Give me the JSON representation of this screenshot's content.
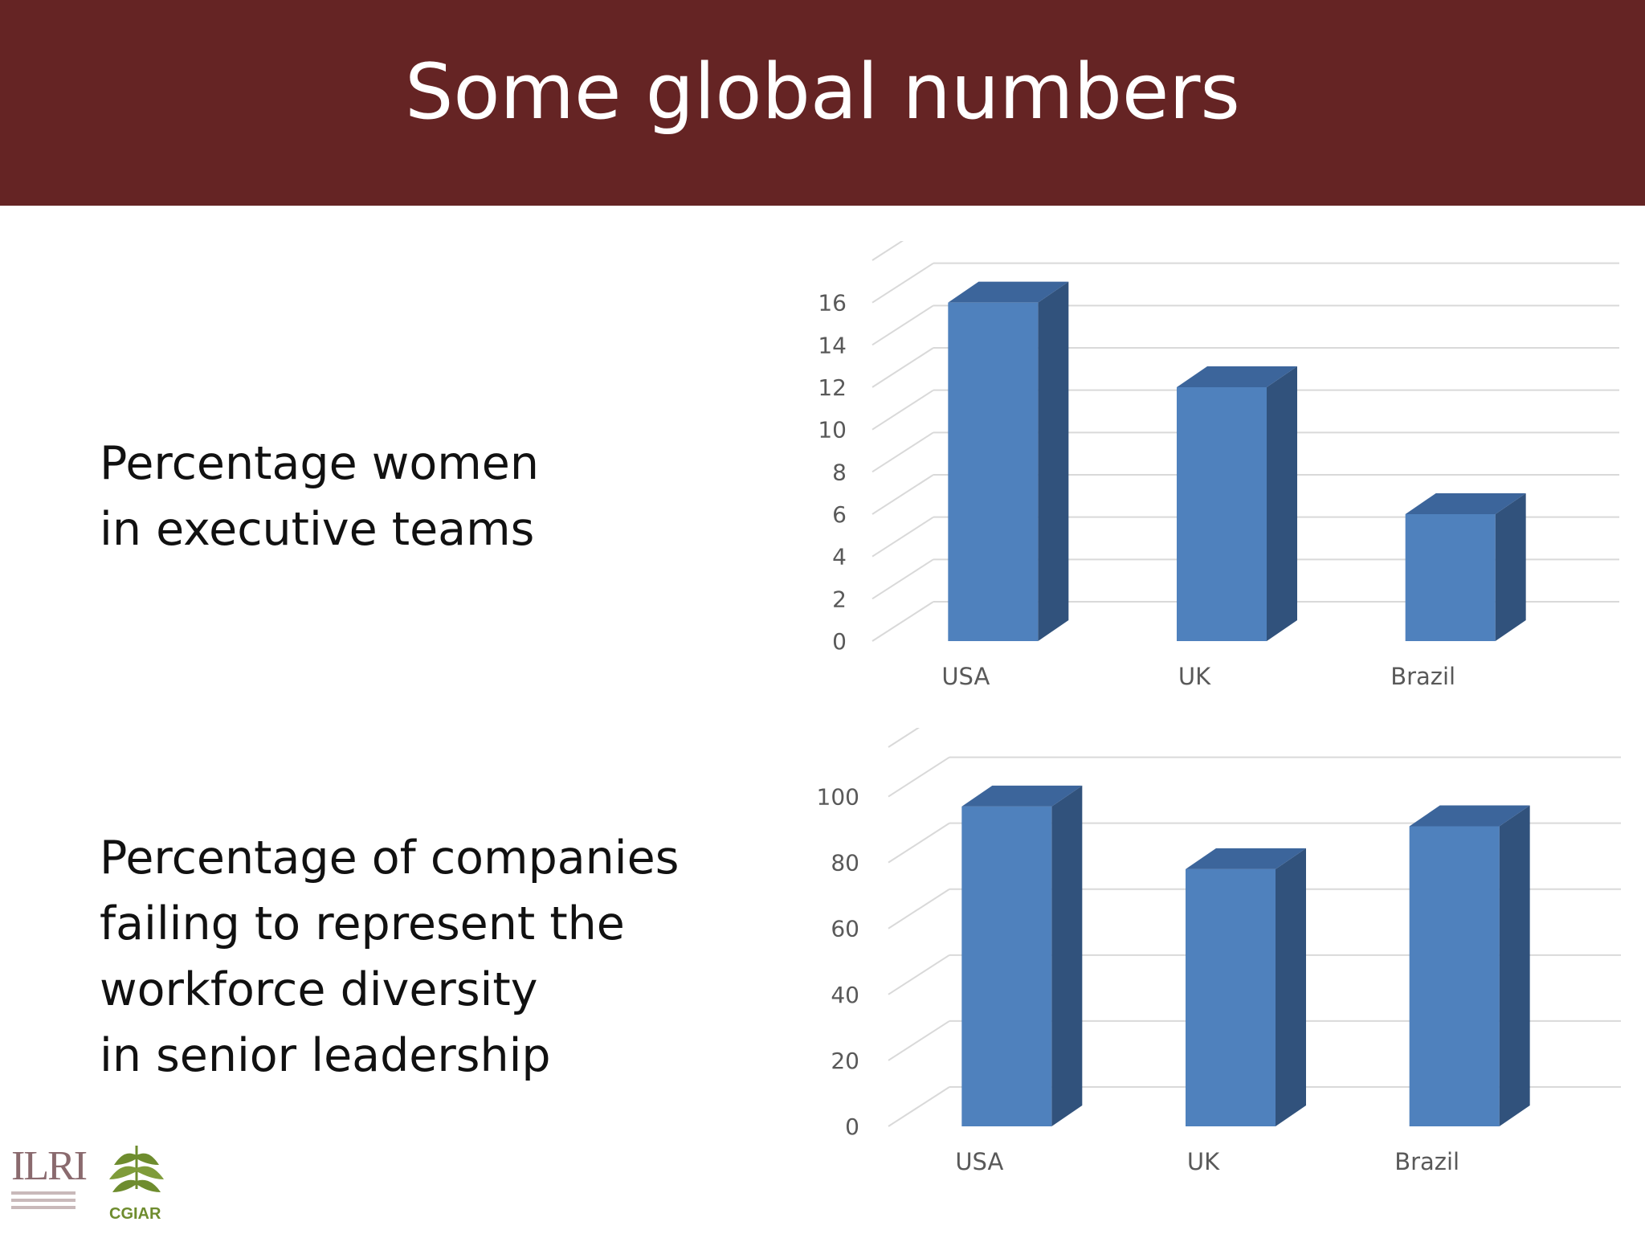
{
  "slide": {
    "title": "Some global numbers",
    "captions": [
      [
        "Percentage women",
        "in executive teams"
      ],
      [
        "Percentage of companies",
        "failing to represent the",
        "workforce diversity",
        "in senior leadership"
      ]
    ],
    "logos": {
      "ilri": "ILRI",
      "cgiar": "CGIAR"
    },
    "colors": {
      "header": "#652424",
      "bar_front": "#4f81bd",
      "bar_side": "#31527c",
      "bar_top": "#3c659b"
    }
  },
  "chart_data": [
    {
      "type": "bar",
      "categories": [
        "USA",
        "UK",
        "Brazil"
      ],
      "values": [
        16,
        12,
        6
      ],
      "yticks": [
        0,
        2,
        4,
        6,
        8,
        10,
        12,
        14,
        16
      ],
      "ylim": [
        0,
        18
      ],
      "title": "",
      "xlabel": "",
      "ylabel": "",
      "grid": true,
      "legend": "none",
      "style": "3d-column"
    },
    {
      "type": "bar",
      "categories": [
        "USA",
        "UK",
        "Brazil"
      ],
      "values": [
        97,
        78,
        91
      ],
      "yticks": [
        0,
        20,
        40,
        60,
        80,
        100
      ],
      "ylim": [
        0,
        115
      ],
      "title": "",
      "xlabel": "",
      "ylabel": "",
      "grid": true,
      "legend": "none",
      "style": "3d-column"
    }
  ]
}
